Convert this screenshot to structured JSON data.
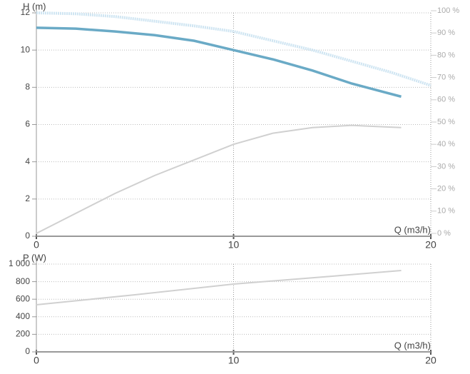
{
  "chart_data": [
    {
      "type": "line",
      "y_label": "H (m)",
      "x_label": "Q (m3/h)",
      "xlim": [
        0,
        20
      ],
      "xticks": [
        0,
        10,
        20
      ],
      "ylim": [
        0,
        12
      ],
      "yticks": [
        0,
        2,
        4,
        6,
        8,
        10,
        12
      ],
      "y2lim": [
        0,
        100
      ],
      "y2ticks": [
        {
          "value": 0,
          "label": "0 %"
        },
        {
          "value": 10,
          "label": "10 %"
        },
        {
          "value": 20,
          "label": "20 %"
        },
        {
          "value": 30,
          "label": "30 %"
        },
        {
          "value": 40,
          "label": "40 %"
        },
        {
          "value": 50,
          "label": "50 %"
        },
        {
          "value": 60,
          "label": "60 %"
        },
        {
          "value": 70,
          "label": "70 %"
        },
        {
          "value": 80,
          "label": "80 %"
        },
        {
          "value": 90,
          "label": "90 %"
        },
        {
          "value": 100,
          "label": "100 %"
        }
      ],
      "grid": true,
      "series": [
        {
          "color": "#cfe5f2",
          "dashed": true,
          "x": [
            0,
            2,
            4,
            6,
            8,
            10,
            12,
            14,
            16,
            18,
            20
          ],
          "values": [
            12,
            11.95,
            11.8,
            11.55,
            11.3,
            11.0,
            10.5,
            10.0,
            9.4,
            8.8,
            8.1
          ]
        },
        {
          "color": "#6aaac6",
          "x": [
            0,
            2,
            4,
            6,
            8,
            10,
            12,
            14,
            16,
            18.5
          ],
          "values": [
            11.2,
            11.15,
            11.0,
            10.8,
            10.5,
            10.0,
            9.5,
            8.9,
            8.2,
            7.5
          ]
        },
        {
          "color": "#d0d0d0",
          "axis": "y2",
          "x": [
            0,
            2,
            4,
            6,
            8,
            10,
            12,
            14,
            16,
            18.5
          ],
          "values": [
            0,
            9,
            18,
            26,
            33,
            40,
            45,
            47.5,
            48.5,
            47.5
          ]
        }
      ]
    },
    {
      "type": "line",
      "y_label": "P (W)",
      "x_label": "Q (m3/h)",
      "xlim": [
        0,
        20
      ],
      "xticks": [
        0,
        10,
        20
      ],
      "ylim": [
        0,
        1000
      ],
      "yticks": [
        0,
        200,
        400,
        600,
        800,
        {
          "value": 1000,
          "label": "1 000"
        }
      ],
      "grid": true,
      "series": [
        {
          "color": "#d0d0d0",
          "x": [
            0,
            5,
            10,
            15,
            18.5
          ],
          "values": [
            537,
            650,
            772,
            862,
            927
          ]
        }
      ]
    }
  ]
}
